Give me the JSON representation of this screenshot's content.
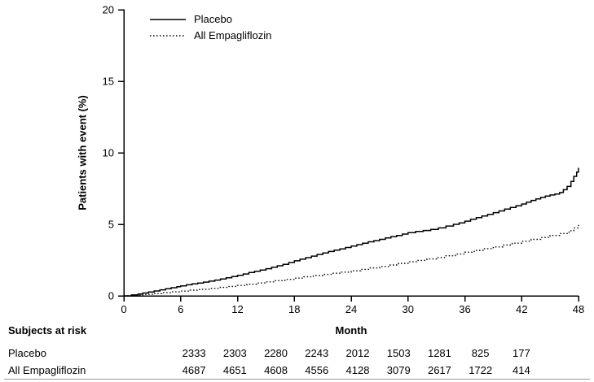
{
  "figure": {
    "background": "#ffffff",
    "line_color": "#000000"
  },
  "chart_data": {
    "type": "line",
    "subtype": "kaplan-meier-step",
    "title": "",
    "xlabel": "Month",
    "ylabel": "Patients with event (%)",
    "xlim": [
      0,
      48
    ],
    "ylim": [
      0,
      20
    ],
    "xticks": [
      0,
      6,
      12,
      18,
      24,
      30,
      36,
      42,
      48
    ],
    "yticks": [
      0,
      5,
      10,
      15,
      20
    ],
    "grid": false,
    "legend_position": "top-left-inside",
    "series": [
      {
        "name": "Placebo",
        "color": "#000000",
        "line_style": "solid",
        "dash": "none",
        "points": [
          [
            0,
            0
          ],
          [
            0.8,
            0.06
          ],
          [
            1.5,
            0.13
          ],
          [
            2,
            0.2
          ],
          [
            2.6,
            0.27
          ],
          [
            3.2,
            0.34
          ],
          [
            3.8,
            0.42
          ],
          [
            4.4,
            0.5
          ],
          [
            5,
            0.57
          ],
          [
            5.6,
            0.64
          ],
          [
            6,
            0.7
          ],
          [
            6.6,
            0.77
          ],
          [
            7.2,
            0.84
          ],
          [
            7.8,
            0.9
          ],
          [
            8.4,
            0.96
          ],
          [
            9,
            1.03
          ],
          [
            9.6,
            1.1
          ],
          [
            10.2,
            1.18
          ],
          [
            10.8,
            1.26
          ],
          [
            11.4,
            1.35
          ],
          [
            12,
            1.44
          ],
          [
            12.6,
            1.53
          ],
          [
            13.2,
            1.63
          ],
          [
            13.8,
            1.72
          ],
          [
            14.4,
            1.8
          ],
          [
            15,
            1.9
          ],
          [
            15.6,
            2
          ],
          [
            16.2,
            2.1
          ],
          [
            16.8,
            2.2
          ],
          [
            17.4,
            2.33
          ],
          [
            18,
            2.45
          ],
          [
            18.6,
            2.56
          ],
          [
            19.2,
            2.67
          ],
          [
            19.8,
            2.78
          ],
          [
            20.4,
            2.89
          ],
          [
            21,
            3
          ],
          [
            21.6,
            3.1
          ],
          [
            22.2,
            3.2
          ],
          [
            22.8,
            3.28
          ],
          [
            23.4,
            3.38
          ],
          [
            24,
            3.48
          ],
          [
            24.6,
            3.58
          ],
          [
            25.2,
            3.68
          ],
          [
            25.8,
            3.78
          ],
          [
            26.4,
            3.86
          ],
          [
            27,
            3.95
          ],
          [
            27.6,
            4.05
          ],
          [
            28.2,
            4.14
          ],
          [
            28.8,
            4.22
          ],
          [
            29.4,
            4.32
          ],
          [
            30,
            4.42
          ],
          [
            30.8,
            4.5
          ],
          [
            31.6,
            4.57
          ],
          [
            32.4,
            4.65
          ],
          [
            33.2,
            4.75
          ],
          [
            34,
            4.88
          ],
          [
            34.8,
            5
          ],
          [
            35.4,
            5.1
          ],
          [
            36,
            5.22
          ],
          [
            36.6,
            5.35
          ],
          [
            37.2,
            5.47
          ],
          [
            37.8,
            5.58
          ],
          [
            38.4,
            5.7
          ],
          [
            39,
            5.82
          ],
          [
            39.6,
            5.94
          ],
          [
            40.2,
            6.06
          ],
          [
            40.8,
            6.18
          ],
          [
            41.4,
            6.3
          ],
          [
            42,
            6.42
          ],
          [
            42.5,
            6.55
          ],
          [
            43,
            6.67
          ],
          [
            43.5,
            6.78
          ],
          [
            44,
            6.88
          ],
          [
            44.5,
            6.97
          ],
          [
            45,
            7.05
          ],
          [
            45.5,
            7.12
          ],
          [
            46,
            7.22
          ],
          [
            46.4,
            7.42
          ],
          [
            46.8,
            7.65
          ],
          [
            47.2,
            8
          ],
          [
            47.5,
            8.35
          ],
          [
            47.8,
            8.65
          ],
          [
            48,
            8.95
          ]
        ]
      },
      {
        "name": "All Empagliflozin",
        "color": "#000000",
        "line_style": "dotted",
        "dash": "1.5 2.5",
        "points": [
          [
            0,
            0
          ],
          [
            1,
            0.05
          ],
          [
            2,
            0.1
          ],
          [
            3,
            0.16
          ],
          [
            4,
            0.22
          ],
          [
            5,
            0.28
          ],
          [
            6,
            0.33
          ],
          [
            7,
            0.4
          ],
          [
            8,
            0.46
          ],
          [
            9,
            0.52
          ],
          [
            10,
            0.59
          ],
          [
            11,
            0.66
          ],
          [
            12,
            0.73
          ],
          [
            13,
            0.81
          ],
          [
            14,
            0.9
          ],
          [
            15,
            0.98
          ],
          [
            16,
            1.06
          ],
          [
            17,
            1.15
          ],
          [
            18,
            1.24
          ],
          [
            19,
            1.33
          ],
          [
            20,
            1.42
          ],
          [
            21,
            1.5
          ],
          [
            22,
            1.58
          ],
          [
            23,
            1.66
          ],
          [
            24,
            1.75
          ],
          [
            25,
            1.85
          ],
          [
            26,
            1.95
          ],
          [
            27,
            2.05
          ],
          [
            28,
            2.16
          ],
          [
            29,
            2.27
          ],
          [
            30,
            2.38
          ],
          [
            31,
            2.48
          ],
          [
            32,
            2.58
          ],
          [
            33,
            2.68
          ],
          [
            34,
            2.8
          ],
          [
            35,
            2.92
          ],
          [
            36,
            3.05
          ],
          [
            37,
            3.18
          ],
          [
            38,
            3.3
          ],
          [
            39,
            3.42
          ],
          [
            40,
            3.55
          ],
          [
            41,
            3.68
          ],
          [
            42,
            3.82
          ],
          [
            43,
            3.95
          ],
          [
            44,
            4.08
          ],
          [
            45,
            4.22
          ],
          [
            46,
            4.36
          ],
          [
            47,
            4.55
          ],
          [
            47.5,
            4.75
          ],
          [
            48,
            4.95
          ]
        ]
      }
    ]
  },
  "risk_table": {
    "heading": "Subjects at risk",
    "months": [
      0,
      6,
      12,
      18,
      24,
      30,
      36,
      42,
      48
    ],
    "rows": [
      {
        "label": "Placebo",
        "counts": [
          "2333",
          "2303",
          "2280",
          "2243",
          "2012",
          "1503",
          "1281",
          "825",
          "177"
        ]
      },
      {
        "label": "All Empagliflozin",
        "counts": [
          "4687",
          "4651",
          "4608",
          "4556",
          "4128",
          "3079",
          "2617",
          "1722",
          "414"
        ]
      }
    ]
  }
}
